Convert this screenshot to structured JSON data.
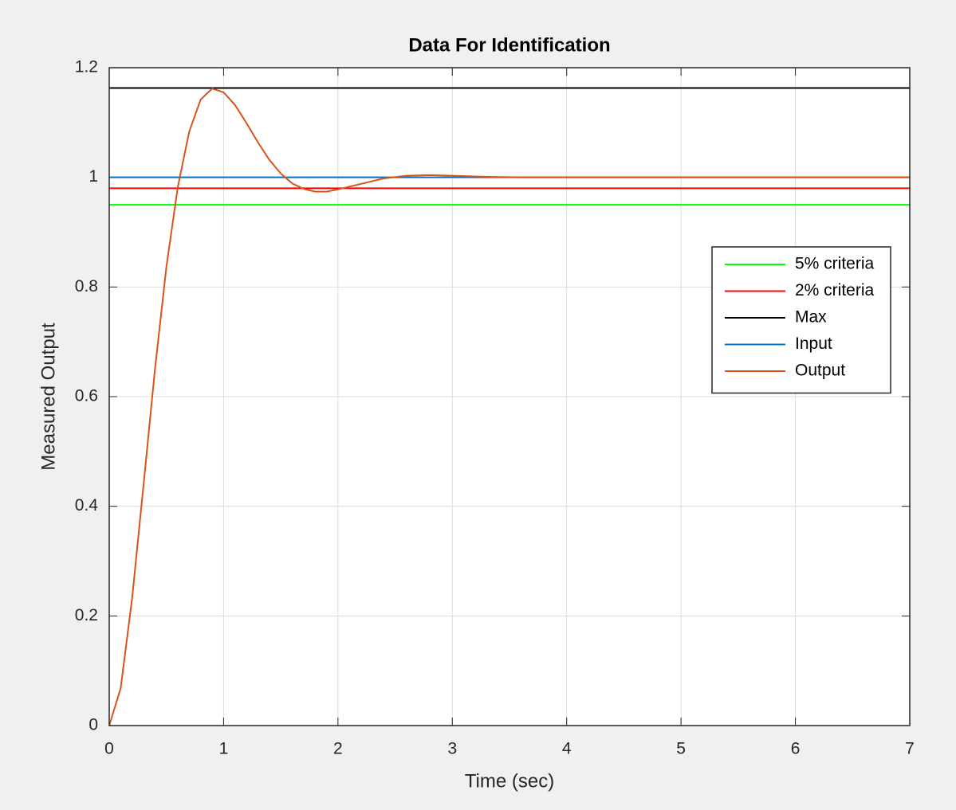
{
  "chart_data": {
    "type": "line",
    "title": "Data For Identification",
    "x_label": "Time (sec)",
    "y_label": "Measured Output",
    "xlim": [
      0,
      7
    ],
    "ylim": [
      0,
      1.2
    ],
    "xticks": [
      0,
      1,
      2,
      3,
      4,
      5,
      6,
      7
    ],
    "yticks": [
      0,
      0.2,
      0.4,
      0.6,
      0.8,
      1,
      1.2
    ],
    "grid": true,
    "legend": "right",
    "series": [
      {
        "name": "5% criteria",
        "color": "#00ff00",
        "x": [
          0,
          7
        ],
        "values": [
          0.95,
          0.95
        ]
      },
      {
        "name": "2% criteria",
        "color": "#ff0000",
        "x": [
          0,
          7
        ],
        "values": [
          0.98,
          0.98
        ]
      },
      {
        "name": "Max",
        "color": "#000000",
        "x": [
          0,
          7
        ],
        "values": [
          1.163,
          1.163
        ]
      },
      {
        "name": "Input",
        "color": "#0072bd",
        "x": [
          0,
          7
        ],
        "values": [
          1,
          1
        ]
      },
      {
        "name": "Output",
        "color": "#d95319",
        "x": [
          0,
          0.1,
          0.2,
          0.3,
          0.4,
          0.5,
          0.6,
          0.7,
          0.8,
          0.9,
          1.0,
          1.1,
          1.2,
          1.3,
          1.4,
          1.5,
          1.6,
          1.7,
          1.8,
          1.9,
          2.0,
          2.2,
          2.4,
          2.6,
          2.8,
          3.0,
          3.3,
          3.6,
          4,
          5,
          6,
          7
        ],
        "values": [
          0,
          0.068,
          0.232,
          0.439,
          0.65,
          0.837,
          0.983,
          1.084,
          1.142,
          1.162,
          1.155,
          1.132,
          1.099,
          1.064,
          1.032,
          1.007,
          0.989,
          0.979,
          0.974,
          0.974,
          0.978,
          0.988,
          0.998,
          1.003,
          1.004,
          1.003,
          1.001,
          1,
          1,
          1,
          1,
          1
        ]
      }
    ]
  }
}
